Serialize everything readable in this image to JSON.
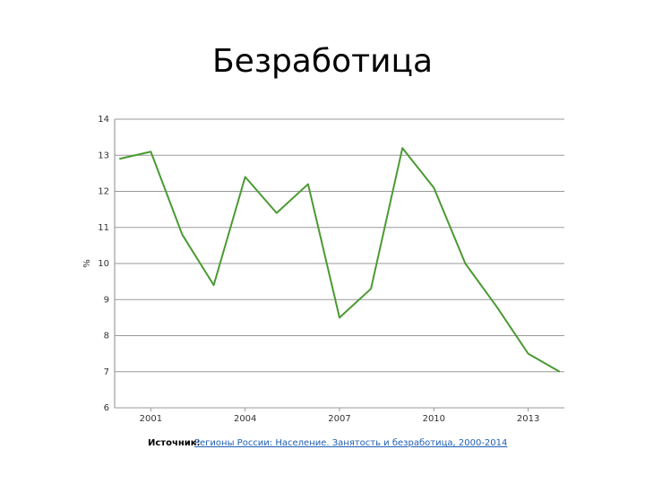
{
  "chart_data": {
    "type": "line",
    "title": "Безработица",
    "y_label": "%",
    "x": [
      2000,
      2001,
      2002,
      2003,
      2004,
      2005,
      2006,
      2007,
      2008,
      2009,
      2010,
      2011,
      2012,
      2013,
      2014
    ],
    "series": [
      {
        "color": "#4a9a32",
        "values": [
          12.9,
          13.1,
          10.8,
          9.4,
          12.4,
          11.4,
          12.2,
          8.5,
          9.3,
          13.2,
          12.1,
          10.0,
          8.8,
          7.5,
          7.0
        ]
      }
    ],
    "xlim": [
      1999.85,
      2014.15
    ],
    "xticks": [
      2001,
      2004,
      2007,
      2010,
      2013
    ],
    "ylim": [
      6,
      14
    ],
    "yticks": [
      6,
      7,
      8,
      9,
      10,
      11,
      12,
      13,
      14
    ],
    "grid": true,
    "source_label": "Источник:",
    "source_link": "Регионы России: Население. Занятость и безработица, 2000-2014"
  }
}
